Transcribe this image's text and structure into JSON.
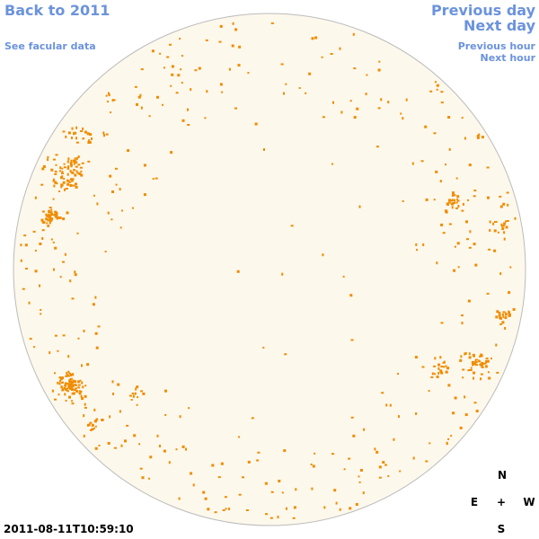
{
  "header": {
    "back_link": "Back to 2011",
    "facular_link": "See facular data"
  },
  "navigation": {
    "previous_day": "Previous day",
    "next_day": "Next day",
    "previous_hour": "Previous hour",
    "next_hour": "Next hour"
  },
  "timestamp": "2011-08-11T10:59:10",
  "compass": {
    "north": "N",
    "east": "E",
    "center": "+",
    "west": "W",
    "south": "S"
  }
}
